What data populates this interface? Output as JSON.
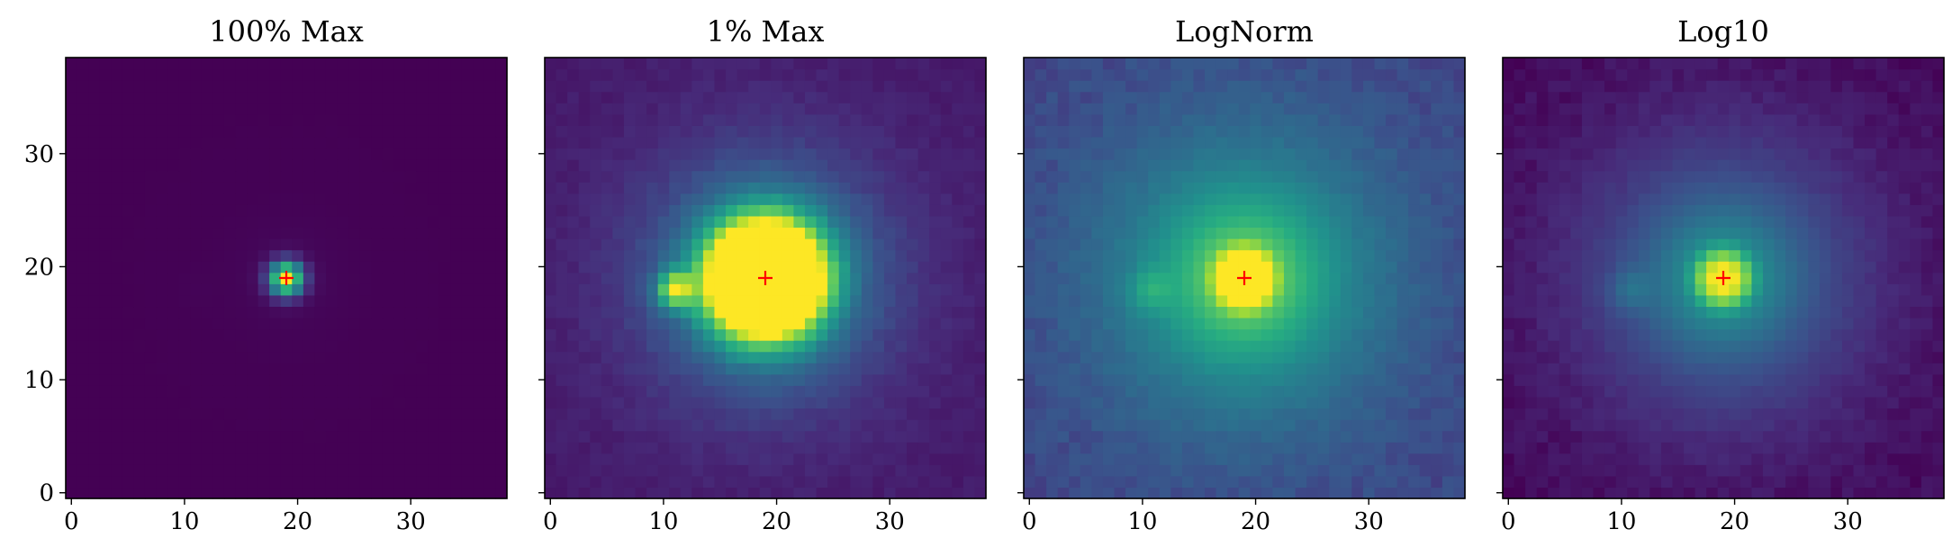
{
  "figure": {
    "background": "#ffffff"
  },
  "chart_data": [
    {
      "type": "heatmap",
      "title": "100% Max",
      "xlabel": "",
      "ylabel": "",
      "xlim": [
        -0.5,
        38.5
      ],
      "ylim": [
        -0.5,
        38.5
      ],
      "xticks": [
        0,
        10,
        20,
        30
      ],
      "yticks": [
        0,
        10,
        20,
        30
      ],
      "show_ytick_labels": true,
      "colormap": "viridis",
      "grid": false,
      "marker": {
        "x": 19,
        "y": 19,
        "symbol": "+",
        "color": "#ff0000"
      }
    },
    {
      "type": "heatmap",
      "title": "1% Max",
      "xlabel": "",
      "ylabel": "",
      "xlim": [
        -0.5,
        38.5
      ],
      "ylim": [
        -0.5,
        38.5
      ],
      "xticks": [
        0,
        10,
        20,
        30
      ],
      "yticks": [
        0,
        10,
        20,
        30
      ],
      "show_ytick_labels": false,
      "colormap": "viridis",
      "grid": false,
      "marker": {
        "x": 19,
        "y": 19,
        "symbol": "+",
        "color": "#ff0000"
      }
    },
    {
      "type": "heatmap",
      "title": "LogNorm",
      "xlabel": "",
      "ylabel": "",
      "xlim": [
        -0.5,
        38.5
      ],
      "ylim": [
        -0.5,
        38.5
      ],
      "xticks": [
        0,
        10,
        20,
        30
      ],
      "yticks": [
        0,
        10,
        20,
        30
      ],
      "show_ytick_labels": false,
      "colormap": "viridis",
      "grid": false,
      "marker": {
        "x": 19,
        "y": 19,
        "symbol": "+",
        "color": "#ff0000"
      }
    },
    {
      "type": "heatmap",
      "title": "Log10",
      "xlabel": "",
      "ylabel": "",
      "xlim": [
        -0.5,
        38.5
      ],
      "ylim": [
        -0.5,
        38.5
      ],
      "xticks": [
        0,
        10,
        20,
        30
      ],
      "yticks": [
        0,
        10,
        20,
        30
      ],
      "show_ytick_labels": false,
      "colormap": "viridis",
      "grid": false,
      "marker": {
        "x": 19,
        "y": 19,
        "symbol": "+",
        "color": "#ff0000"
      }
    }
  ]
}
